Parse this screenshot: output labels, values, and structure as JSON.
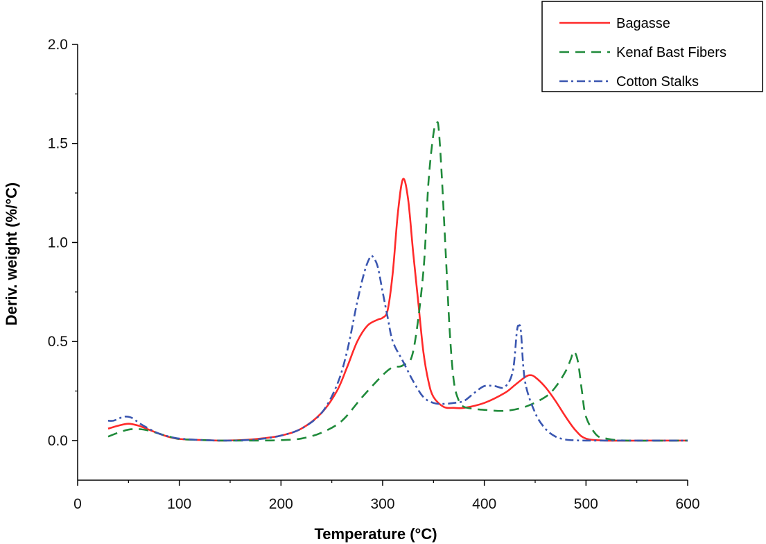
{
  "chart_data": {
    "type": "line",
    "title": "",
    "xlabel": "Temperature (°C)",
    "ylabel": "Deriv. weight (%/°C)",
    "xlim": [
      0,
      600
    ],
    "ylim": [
      -0.2,
      2.0
    ],
    "xticks": [
      0,
      100,
      200,
      300,
      400,
      500,
      600
    ],
    "xtick_labels": [
      "0",
      "100",
      "200",
      "300",
      "400",
      "500",
      "600"
    ],
    "yticks": [
      0.0,
      0.5,
      1.0,
      1.5,
      2.0
    ],
    "ytick_labels": [
      "0.0",
      "0.5",
      "1.0",
      "1.5",
      "2.0"
    ],
    "grid": false,
    "legend_position": "top-right",
    "series": [
      {
        "name": "Bagasse",
        "color": "#ff2a2a",
        "style": "solid",
        "x": [
          30,
          40,
          50,
          60,
          70,
          80,
          90,
          100,
          120,
          140,
          160,
          180,
          200,
          220,
          240,
          255,
          265,
          275,
          285,
          295,
          300,
          305,
          310,
          315,
          320,
          325,
          330,
          335,
          340,
          345,
          350,
          360,
          370,
          380,
          400,
          420,
          430,
          440,
          445,
          450,
          460,
          470,
          480,
          490,
          500,
          520,
          560,
          600
        ],
        "y": [
          0.06,
          0.075,
          0.085,
          0.075,
          0.055,
          0.035,
          0.018,
          0.008,
          0.003,
          0.0,
          0.002,
          0.01,
          0.025,
          0.06,
          0.14,
          0.25,
          0.37,
          0.5,
          0.58,
          0.61,
          0.62,
          0.66,
          0.85,
          1.15,
          1.32,
          1.22,
          0.95,
          0.7,
          0.45,
          0.3,
          0.22,
          0.17,
          0.165,
          0.165,
          0.19,
          0.24,
          0.28,
          0.32,
          0.33,
          0.32,
          0.27,
          0.2,
          0.12,
          0.05,
          0.01,
          0.0,
          0.0,
          0.0
        ]
      },
      {
        "name": "Kenaf Bast Fibers",
        "color": "#1f8a3a",
        "style": "dashed",
        "x": [
          30,
          40,
          50,
          60,
          70,
          80,
          90,
          100,
          120,
          140,
          160,
          180,
          200,
          220,
          240,
          260,
          280,
          300,
          310,
          320,
          330,
          340,
          345,
          350,
          353,
          355,
          358,
          362,
          366,
          370,
          375,
          380,
          390,
          400,
          420,
          440,
          460,
          470,
          480,
          485,
          488,
          492,
          496,
          500,
          510,
          520,
          540,
          600
        ],
        "y": [
          0.02,
          0.04,
          0.055,
          0.058,
          0.05,
          0.035,
          0.02,
          0.008,
          0.003,
          0.0,
          0.0,
          0.0,
          0.002,
          0.01,
          0.04,
          0.1,
          0.22,
          0.33,
          0.37,
          0.38,
          0.45,
          0.85,
          1.3,
          1.55,
          1.6,
          1.58,
          1.35,
          0.95,
          0.55,
          0.3,
          0.2,
          0.17,
          0.16,
          0.155,
          0.15,
          0.17,
          0.22,
          0.27,
          0.35,
          0.41,
          0.45,
          0.4,
          0.25,
          0.12,
          0.03,
          0.01,
          0.0,
          0.0
        ]
      },
      {
        "name": "Cotton Stalks",
        "color": "#3a56b0",
        "style": "dash-dot",
        "x": [
          30,
          35,
          40,
          45,
          50,
          55,
          60,
          70,
          80,
          90,
          100,
          120,
          140,
          160,
          180,
          200,
          220,
          240,
          255,
          265,
          275,
          282,
          287,
          290,
          295,
          300,
          305,
          310,
          320,
          330,
          340,
          350,
          360,
          370,
          380,
          390,
          400,
          410,
          420,
          428,
          432,
          434,
          436,
          440,
          450,
          460,
          470,
          480,
          490,
          500,
          520,
          600
        ],
        "y": [
          0.1,
          0.1,
          0.11,
          0.12,
          0.12,
          0.11,
          0.09,
          0.06,
          0.035,
          0.02,
          0.01,
          0.003,
          0.0,
          0.001,
          0.008,
          0.025,
          0.06,
          0.14,
          0.28,
          0.45,
          0.7,
          0.85,
          0.92,
          0.93,
          0.88,
          0.75,
          0.62,
          0.5,
          0.4,
          0.3,
          0.22,
          0.19,
          0.185,
          0.19,
          0.2,
          0.24,
          0.275,
          0.275,
          0.27,
          0.35,
          0.55,
          0.58,
          0.55,
          0.3,
          0.14,
          0.06,
          0.02,
          0.005,
          0.001,
          0.0,
          0.0,
          0.0
        ]
      }
    ]
  }
}
